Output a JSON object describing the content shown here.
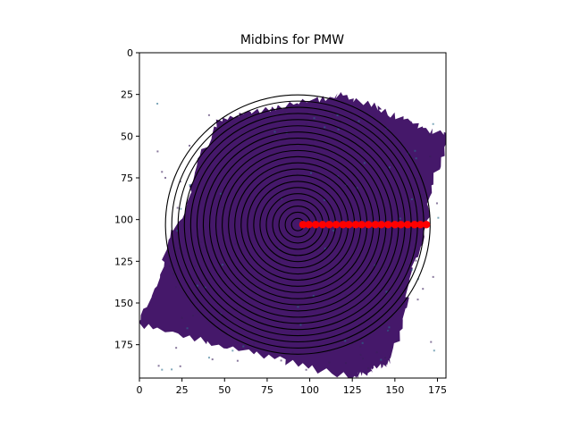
{
  "chart_data": {
    "type": "scatter",
    "title": "Midbins for PMW",
    "xlabel": "",
    "ylabel": "",
    "xlim": [
      0,
      180
    ],
    "ylim": [
      195,
      0
    ],
    "x_ticks": [
      0,
      25,
      50,
      75,
      100,
      125,
      150,
      175
    ],
    "y_ticks": [
      0,
      25,
      50,
      75,
      100,
      125,
      150,
      175
    ],
    "grid": false,
    "legend": "none",
    "center": [
      93,
      103
    ],
    "ring_radii": [
      3.7,
      7.4,
      11.1,
      14.8,
      18.5,
      22.2,
      25.9,
      29.6,
      33.3,
      37.0,
      40.7,
      44.4,
      48.1,
      51.8,
      55.5,
      59.2,
      62.9,
      66.6,
      70.3,
      74.0,
      77.7
    ],
    "series": [
      {
        "values_x": [
          96,
          99.5,
          103.5,
          107.5,
          111.5,
          115.5,
          119.5,
          123,
          127,
          130.5,
          134.5,
          138.5,
          142,
          146,
          150,
          153.5,
          157.5,
          161.5,
          165,
          168.5
        ],
        "values_y": [
          103,
          103,
          103,
          103,
          103,
          103,
          103,
          103,
          103,
          103,
          103,
          103,
          103,
          103,
          103,
          103,
          103,
          103,
          103,
          103
        ],
        "color": "#ff0000"
      }
    ],
    "image_polygon": [
      [
        45,
        40
      ],
      [
        120,
        25
      ],
      [
        180,
        50
      ],
      [
        148,
        185
      ],
      [
        125,
        195
      ],
      [
        0,
        163
      ],
      [
        45,
        40
      ]
    ],
    "colors": {
      "field": "#45186a",
      "field_dark": "#3b1f5c",
      "field_speckle": "#2c6f8e",
      "ring": "#000000",
      "marker": "#ff0000"
    }
  }
}
